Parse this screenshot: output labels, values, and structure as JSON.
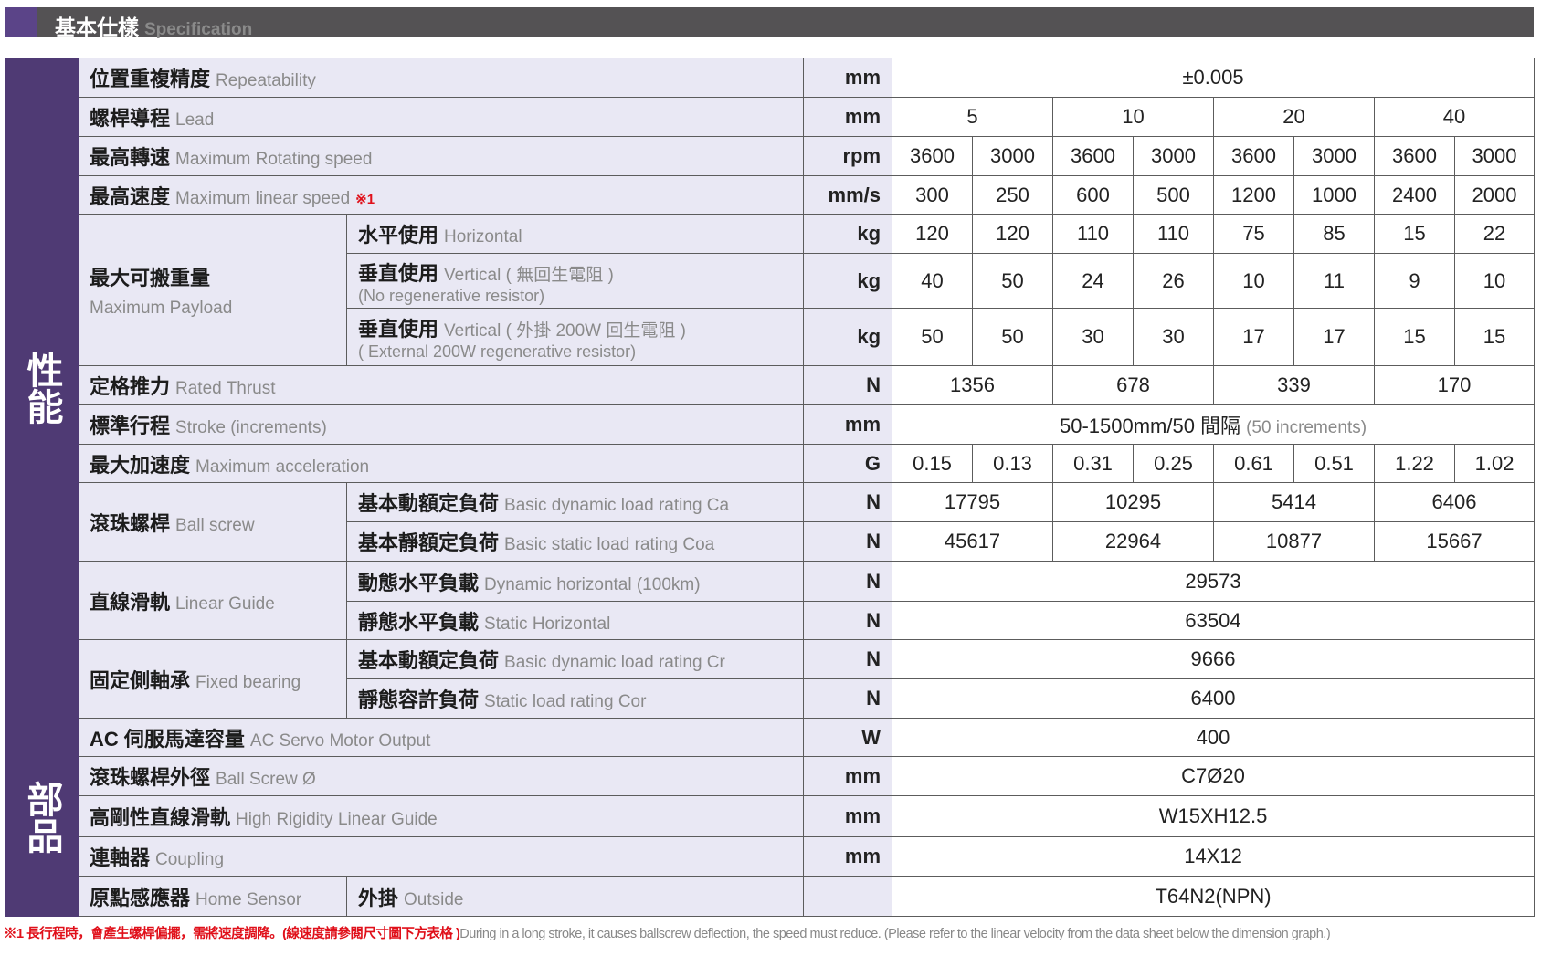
{
  "header": {
    "title_zh": "基本仕樣",
    "title_en": "Specification"
  },
  "colors": {
    "section": "#4f3a74",
    "label_bg": "#e9e8f4",
    "header_bg": "#545254",
    "accent": "#5b4488",
    "note": "#e0101a"
  },
  "sections": [
    {
      "label": "性能",
      "rows": 16
    },
    {
      "label": "部品",
      "rows": 5
    }
  ],
  "groups": {
    "payload": {
      "zh": "最大可搬重量",
      "en": "Maximum Payload"
    },
    "ballscrew": {
      "zh": "滾珠螺桿",
      "en": "Ball screw"
    },
    "guide": {
      "zh": "直線滑軌",
      "en": "Linear Guide"
    },
    "bearing": {
      "zh": "固定側軸承",
      "en": "Fixed bearing"
    },
    "sensor": {
      "zh": "原點感應器",
      "en": "Home Sensor"
    }
  },
  "rows": [
    {
      "zh": "位置重複精度",
      "en": "Repeatability",
      "unit": "mm",
      "span": 8,
      "values": [
        "±0.005"
      ]
    },
    {
      "zh": "螺桿導程",
      "en": "Lead",
      "unit": "mm",
      "span": 2,
      "values": [
        "5",
        "10",
        "20",
        "40"
      ]
    },
    {
      "zh": "最高轉速",
      "en": "Maximum Rotating speed",
      "unit": "rpm",
      "span": 1,
      "values": [
        "3600",
        "3000",
        "3600",
        "3000",
        "3600",
        "3000",
        "3600",
        "3000"
      ]
    },
    {
      "zh": "最高速度",
      "en": "Maximum linear speed",
      "mark": "※1",
      "unit": "mm/s",
      "span": 1,
      "values": [
        "300",
        "250",
        "600",
        "500",
        "1200",
        "1000",
        "2400",
        "2000"
      ]
    },
    {
      "group": "payload",
      "gspan": 3,
      "zh": "水平使用",
      "en": "Horizontal",
      "unit": "kg",
      "span": 1,
      "values": [
        "120",
        "120",
        "110",
        "110",
        "75",
        "85",
        "15",
        "22"
      ]
    },
    {
      "group": "payload",
      "zh": "垂直使用",
      "en": "Vertical ( 無回生電阻 )",
      "en2": "(No regenerative resistor)",
      "unit": "kg",
      "span": 1,
      "values": [
        "40",
        "50",
        "24",
        "26",
        "10",
        "11",
        "9",
        "10"
      ]
    },
    {
      "group": "payload",
      "zh": "垂直使用",
      "en": "Vertical ( 外掛 200W 回生電阻 )",
      "en2": "( External 200W regenerative resistor)",
      "unit": "kg",
      "span": 1,
      "values": [
        "50",
        "50",
        "30",
        "30",
        "17",
        "17",
        "15",
        "15"
      ]
    },
    {
      "zh": "定格推力",
      "en": "Rated Thrust",
      "unit": "N",
      "span": 2,
      "values": [
        "1356",
        "678",
        "339",
        "170"
      ]
    },
    {
      "zh": "標準行程",
      "en": "Stroke (increments)",
      "unit": "mm",
      "span": 8,
      "values": [
        "50-1500mm/50 間隔"
      ],
      "value_note": "(50 increments)"
    },
    {
      "zh": "最大加速度",
      "en": "Maximum acceleration",
      "unit": "G",
      "span": 1,
      "values": [
        "0.15",
        "0.13",
        "0.31",
        "0.25",
        "0.61",
        "0.51",
        "1.22",
        "1.02"
      ]
    },
    {
      "group": "ballscrew",
      "gspan": 2,
      "zh": "基本動額定負荷",
      "en": "Basic dynamic load rating Ca",
      "unit": "N",
      "span": 2,
      "values": [
        "17795",
        "10295",
        "5414",
        "6406"
      ]
    },
    {
      "group": "ballscrew",
      "zh": "基本靜額定負荷",
      "en": "Basic static load rating Coa",
      "unit": "N",
      "span": 2,
      "values": [
        "45617",
        "22964",
        "10877",
        "15667"
      ]
    },
    {
      "group": "guide",
      "gspan": 2,
      "zh": "動態水平負載",
      "en": "Dynamic horizontal (100km)",
      "unit": "N",
      "span": 8,
      "values": [
        "29573"
      ]
    },
    {
      "group": "guide",
      "zh": "靜態水平負載",
      "en": "Static Horizontal",
      "unit": "N",
      "span": 8,
      "values": [
        "63504"
      ]
    },
    {
      "group": "bearing",
      "gspan": 2,
      "zh": "基本動額定負荷",
      "en": "Basic dynamic load rating Cr",
      "unit": "N",
      "span": 8,
      "values": [
        "9666"
      ]
    },
    {
      "group": "bearing",
      "zh": "靜態容許負荷",
      "en": "Static load rating Cor",
      "unit": "N",
      "span": 8,
      "values": [
        "6400"
      ]
    },
    {
      "zh": "AC 伺服馬達容量",
      "en": "AC Servo Motor Output",
      "unit": "W",
      "span": 8,
      "values": [
        "400"
      ]
    },
    {
      "zh": "滾珠螺桿外徑",
      "en": "Ball Screw Ø",
      "unit": "mm",
      "span": 8,
      "values": [
        "C7Ø20"
      ]
    },
    {
      "zh": "高剛性直線滑軌",
      "en": "High Rigidity Linear Guide",
      "unit": "mm",
      "span": 8,
      "values": [
        "W15XH12.5"
      ]
    },
    {
      "zh": "連軸器",
      "en": "Coupling",
      "unit": "mm",
      "span": 8,
      "values": [
        "14X12"
      ]
    },
    {
      "group": "sensor",
      "gspan": 1,
      "zh": "外掛",
      "en": "Outside",
      "unit": "",
      "span": 8,
      "values": [
        "T64N2(NPN)"
      ]
    }
  ],
  "footnote": {
    "zh": "※1 長行程時，會產生螺桿偏擺，需將速度調降。(線速度請參閱尺寸圖下方表格 )",
    "en": "During in a long stroke, it causes ballscrew deflection, the speed must reduce. (Please refer to the linear velocity from the data sheet below the dimension graph.)"
  }
}
